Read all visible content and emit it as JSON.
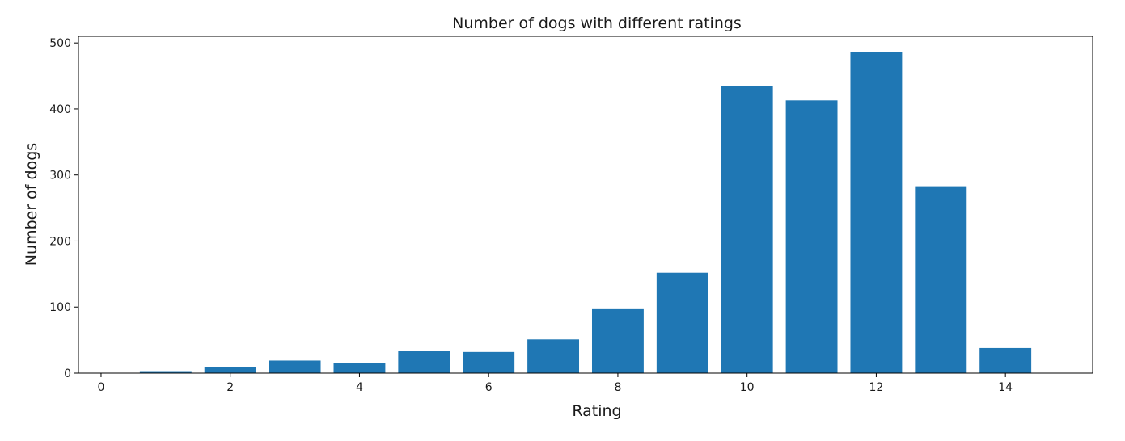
{
  "chart_data": {
    "type": "bar",
    "title": "Number of dogs with different ratings",
    "xlabel": "Rating",
    "ylabel": "Number of dogs",
    "x": [
      1,
      2,
      3,
      4,
      5,
      6,
      7,
      8,
      9,
      10,
      11,
      12,
      13,
      14
    ],
    "values": [
      3,
      9,
      19,
      15,
      34,
      32,
      51,
      98,
      152,
      435,
      413,
      486,
      283,
      38
    ],
    "xlim": [
      -0.35,
      15.35
    ],
    "ylim": [
      0,
      510
    ],
    "xticks": [
      0,
      2,
      4,
      6,
      8,
      10,
      12,
      14
    ],
    "yticks": [
      0,
      100,
      200,
      300,
      400,
      500
    ],
    "bar_width": 0.8,
    "bar_color": "#1f77b4",
    "grid": false,
    "legend": "none"
  }
}
